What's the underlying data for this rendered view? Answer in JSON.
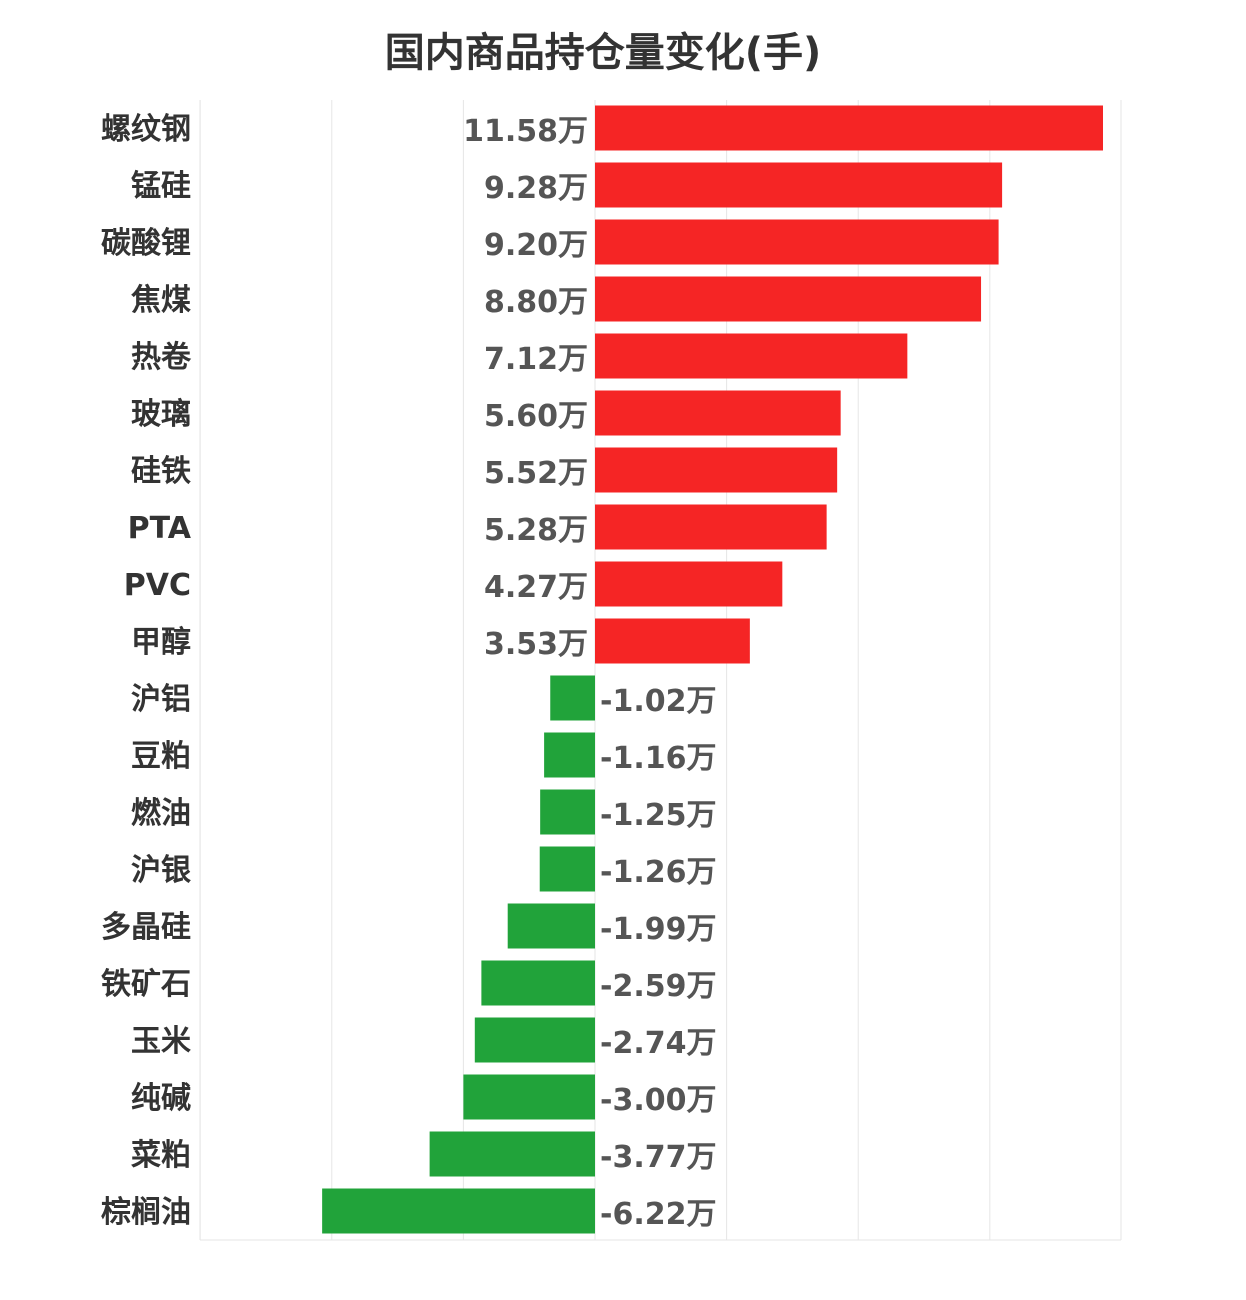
{
  "chart_data": {
    "type": "bar",
    "orientation": "horizontal",
    "title": "国内商品持仓量变化(手)",
    "xlabel": "",
    "ylabel": "",
    "unit_suffix": "万",
    "xlim": [
      -10,
      20
    ],
    "grid": true,
    "legend": "none",
    "colors": {
      "positive": "#f52525",
      "negative": "#21a33a",
      "grid": "#e6e6e6"
    },
    "categories": [
      "螺纹钢",
      "锰硅",
      "碳酸锂",
      "焦煤",
      "热卷",
      "玻璃",
      "硅铁",
      "PTA",
      "PVC",
      "甲醇",
      "沪铝",
      "豆粕",
      "燃油",
      "沪银",
      "多晶硅",
      "铁矿石",
      "玉米",
      "纯碱",
      "菜粕",
      "棕榈油"
    ],
    "values": [
      11.58,
      9.28,
      9.2,
      8.8,
      7.12,
      5.6,
      5.52,
      5.28,
      4.27,
      3.53,
      -1.02,
      -1.16,
      -1.25,
      -1.26,
      -1.99,
      -2.59,
      -2.74,
      -3.0,
      -3.77,
      -6.22
    ],
    "value_labels": [
      "11.58万",
      "9.28万",
      "9.20万",
      "8.80万",
      "7.12万",
      "5.60万",
      "5.52万",
      "5.28万",
      "4.27万",
      "3.53万",
      "-1.02万",
      "-1.16万",
      "-1.25万",
      "-1.26万",
      "-1.99万",
      "-2.59万",
      "-2.74万",
      "-3.00万",
      "-3.77万",
      "-6.22万"
    ]
  }
}
